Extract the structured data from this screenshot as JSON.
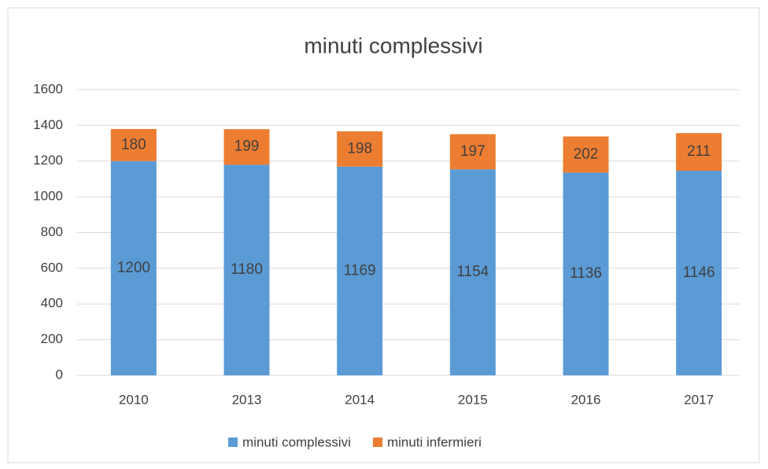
{
  "chart_data": {
    "type": "bar",
    "stacked": true,
    "title": "minuti complessivi",
    "categories": [
      "2010",
      "2013",
      "2014",
      "2015",
      "2016",
      "2017"
    ],
    "series": [
      {
        "name": "minuti complessivi",
        "color": "#5b9bd5",
        "values": [
          1200,
          1180,
          1169,
          1154,
          1136,
          1146
        ]
      },
      {
        "name": "minuti infermieri",
        "color": "#ed7d31",
        "values": [
          180,
          199,
          198,
          197,
          202,
          211
        ]
      }
    ],
    "ylim": [
      0,
      1600
    ],
    "yticks": [
      0,
      200,
      400,
      600,
      800,
      1000,
      1200,
      1400,
      1600
    ],
    "grid": true,
    "legend": "bottom",
    "data_labels": true
  }
}
